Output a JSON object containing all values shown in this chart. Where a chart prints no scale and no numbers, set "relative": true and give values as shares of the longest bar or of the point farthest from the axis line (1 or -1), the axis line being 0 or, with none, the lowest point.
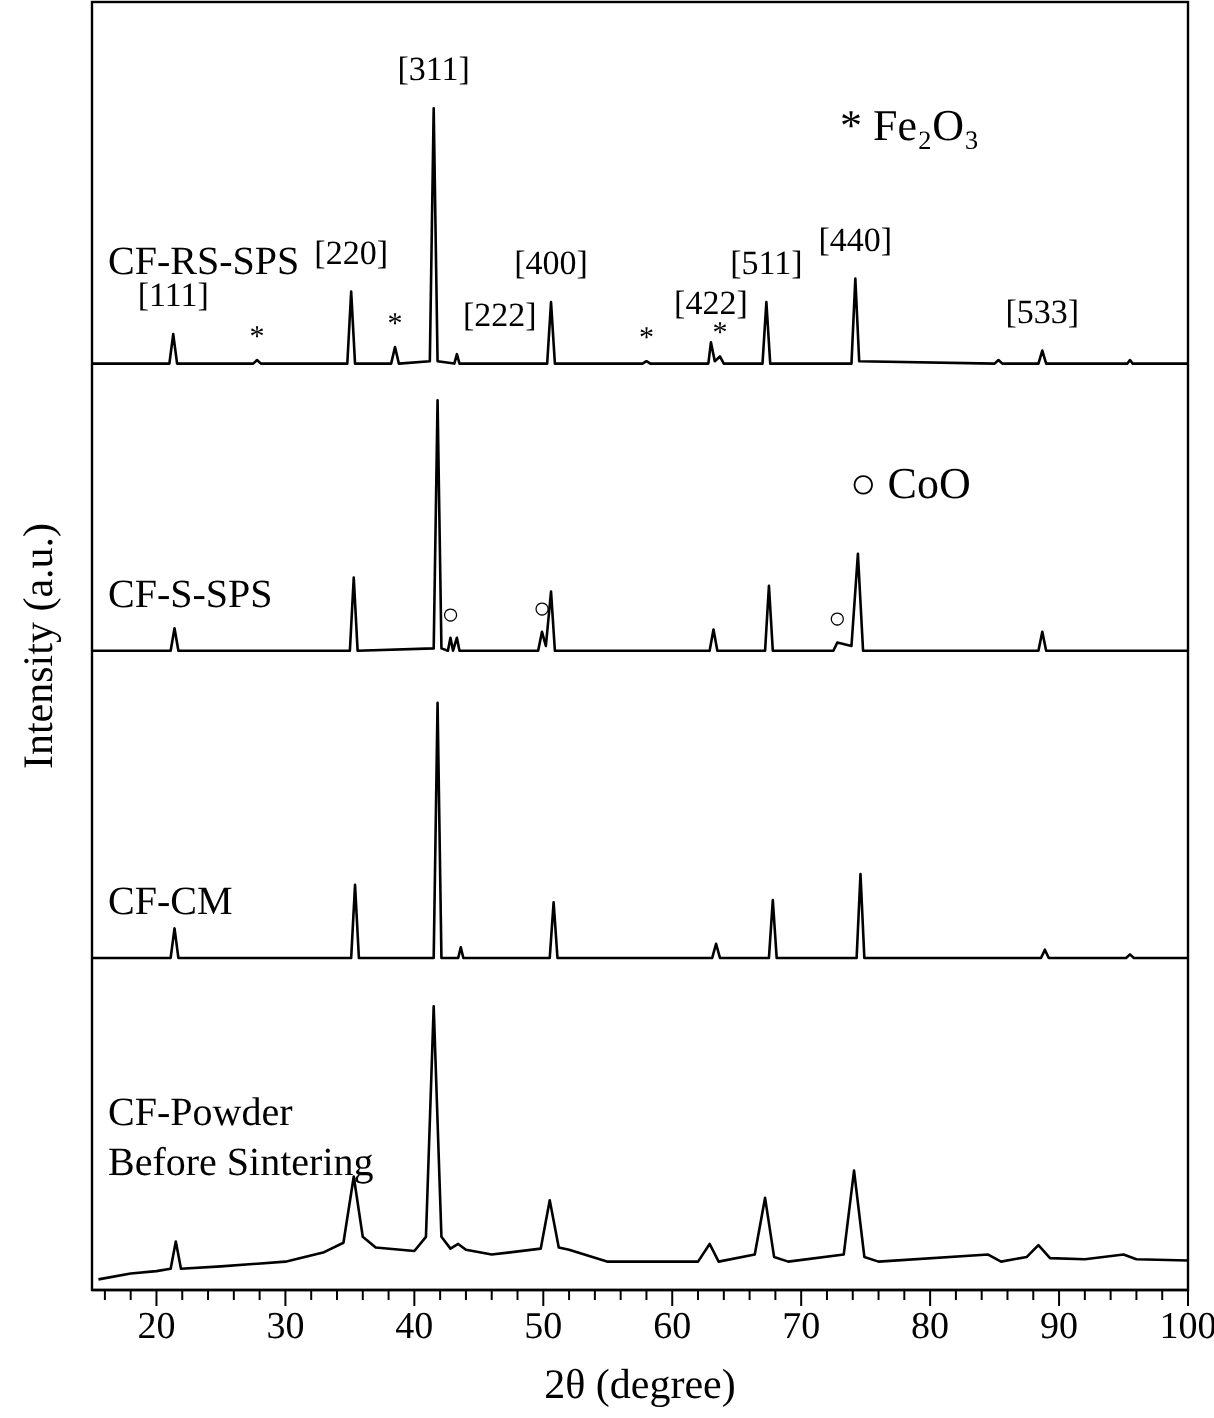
{
  "chart_data": {
    "type": "line",
    "relative": true,
    "xlabel": "2θ (degree)",
    "ylabel": "Intensity (a.u.)",
    "xlim": [
      15,
      100
    ],
    "xticks": [
      {
        "value": 16,
        "label": null
      },
      {
        "value": 18,
        "label": null
      },
      20,
      {
        "value": 22,
        "label": null
      },
      {
        "value": 24,
        "label": null
      },
      {
        "value": 26,
        "label": null
      },
      {
        "value": 28,
        "label": null
      },
      30,
      {
        "value": 32,
        "label": null
      },
      {
        "value": 34,
        "label": null
      },
      {
        "value": 36,
        "label": null
      },
      {
        "value": 38,
        "label": null
      },
      40,
      {
        "value": 42,
        "label": null
      },
      {
        "value": 44,
        "label": null
      },
      {
        "value": 46,
        "label": null
      },
      {
        "value": 48,
        "label": null
      },
      50,
      {
        "value": 52,
        "label": null
      },
      {
        "value": 54,
        "label": null
      },
      {
        "value": 56,
        "label": null
      },
      {
        "value": 58,
        "label": null
      },
      60,
      {
        "value": 62,
        "label": null
      },
      {
        "value": 64,
        "label": null
      },
      {
        "value": 66,
        "label": null
      },
      {
        "value": 68,
        "label": null
      },
      70,
      {
        "value": 72,
        "label": null
      },
      {
        "value": 74,
        "label": null
      },
      {
        "value": 76,
        "label": null
      },
      {
        "value": 78,
        "label": null
      },
      80,
      {
        "value": 82,
        "label": null
      },
      {
        "value": 84,
        "label": null
      },
      {
        "value": 86,
        "label": null
      },
      {
        "value": 88,
        "label": null
      },
      90,
      {
        "value": 92,
        "label": null
      },
      {
        "value": 94,
        "label": null
      },
      {
        "value": 96,
        "label": null
      },
      {
        "value": 98,
        "label": null
      },
      100
    ],
    "grid": false,
    "legend": false,
    "marker": "none",
    "line_style": "solid",
    "tick_labels": "x",
    "series": [
      {
        "name": "CF-RS-SPS",
        "color": "#000000",
        "x": [
          15,
          21,
          21.3,
          21.6,
          27.5,
          27.8,
          28.1,
          34.8,
          35.1,
          35.4,
          38.2,
          38.5,
          38.8,
          41.2,
          41.5,
          41.8,
          43.1,
          43.3,
          43.5,
          50.3,
          50.6,
          50.9,
          57.7,
          58,
          58.3,
          62.8,
          63,
          63.3,
          63.7,
          64,
          67,
          67.3,
          67.6,
          73.9,
          74.2,
          74.5,
          85,
          85.3,
          85.6,
          88.4,
          88.7,
          89,
          95.3,
          95.5,
          95.7,
          100
        ],
        "values": [
          0.784,
          0.784,
          0.809,
          0.784,
          0.784,
          0.787,
          0.784,
          0.784,
          0.845,
          0.784,
          0.784,
          0.798,
          0.784,
          0.786,
          1,
          0.786,
          0.784,
          0.792,
          0.784,
          0.784,
          0.836,
          0.784,
          0.784,
          0.786,
          0.784,
          0.784,
          0.802,
          0.786,
          0.79,
          0.784,
          0.784,
          0.836,
          0.784,
          0.784,
          0.856,
          0.786,
          0.784,
          0.787,
          0.784,
          0.784,
          0.795,
          0.784,
          0.784,
          0.787,
          0.784,
          0.784
        ]
      },
      {
        "name": "CF-S-SPS",
        "color": "#000000",
        "x": [
          15,
          21.1,
          21.4,
          21.7,
          35,
          35.3,
          35.6,
          41.5,
          41.8,
          42.1,
          42.6,
          42.8,
          43,
          43.3,
          43.5,
          49.6,
          49.9,
          50.2,
          50.6,
          50.9,
          62.9,
          63.2,
          63.5,
          67.2,
          67.5,
          67.8,
          72.5,
          72.8,
          73.9,
          74.4,
          74.8,
          88.4,
          88.7,
          89,
          100
        ],
        "values": [
          0.541,
          0.541,
          0.56,
          0.541,
          0.541,
          0.603,
          0.541,
          0.543,
          0.753,
          0.543,
          0.541,
          0.552,
          0.541,
          0.552,
          0.541,
          0.541,
          0.557,
          0.545,
          0.591,
          0.541,
          0.541,
          0.559,
          0.541,
          0.541,
          0.596,
          0.541,
          0.541,
          0.548,
          0.545,
          0.623,
          0.541,
          0.541,
          0.557,
          0.541,
          0.541
        ]
      },
      {
        "name": "CF-CM",
        "color": "#000000",
        "x": [
          15,
          21.1,
          21.4,
          21.7,
          35.1,
          35.4,
          35.7,
          41.5,
          41.8,
          42.1,
          43.4,
          43.6,
          43.8,
          50.5,
          50.8,
          51.1,
          63.1,
          63.4,
          63.7,
          67.5,
          67.8,
          68.1,
          74.3,
          74.6,
          74.9,
          88.6,
          88.9,
          89.2,
          95.2,
          95.5,
          95.8,
          100
        ],
        "values": [
          0.281,
          0.281,
          0.306,
          0.281,
          0.281,
          0.343,
          0.281,
          0.281,
          0.497,
          0.281,
          0.281,
          0.29,
          0.281,
          0.281,
          0.328,
          0.281,
          0.281,
          0.293,
          0.281,
          0.281,
          0.33,
          0.281,
          0.281,
          0.352,
          0.281,
          0.281,
          0.288,
          0.281,
          0.281,
          0.284,
          0.281,
          0.281
        ]
      },
      {
        "name": "CF-Powder\nBefore Sintering",
        "color": "#000000",
        "x": [
          15.5,
          18,
          20,
          21.1,
          21.5,
          21.9,
          25,
          30,
          33,
          34.5,
          35.3,
          36,
          37,
          40,
          40.9,
          41.5,
          42.1,
          42.8,
          43.4,
          44,
          46,
          49.8,
          50.5,
          51.2,
          52,
          55,
          62,
          62.9,
          63.6,
          66.4,
          67.2,
          67.9,
          69,
          73.3,
          74.1,
          74.9,
          76,
          84.5,
          85.5,
          87.5,
          88.4,
          89.3,
          92,
          95,
          96,
          100
        ],
        "values": [
          0.009,
          0.014,
          0.016,
          0.018,
          0.041,
          0.018,
          0.02,
          0.024,
          0.032,
          0.04,
          0.096,
          0.045,
          0.036,
          0.033,
          0.045,
          0.24,
          0.045,
          0.035,
          0.039,
          0.034,
          0.03,
          0.035,
          0.076,
          0.036,
          0.034,
          0.024,
          0.024,
          0.039,
          0.024,
          0.03,
          0.078,
          0.028,
          0.024,
          0.03,
          0.101,
          0.028,
          0.024,
          0.03,
          0.024,
          0.028,
          0.038,
          0.027,
          0.026,
          0.03,
          0.026,
          0.025
        ]
      }
    ],
    "annotations": [
      "* Fe₂O₃",
      "○ CoO",
      {
        "text": "[111]",
        "x": 21.3,
        "y": 0.809
      },
      {
        "text": "[220]",
        "x": 35.1,
        "y": 0.845
      },
      {
        "text": "[311]",
        "x": 41.5,
        "y": 1
      },
      {
        "text": "[222]",
        "x": 43.3,
        "y": 0.792
      },
      {
        "text": "[400]",
        "x": 50.6,
        "y": 0.836
      },
      {
        "text": "[422]",
        "x": 63,
        "y": 0.802
      },
      {
        "text": "[511]",
        "x": 67.3,
        "y": 0.836
      },
      {
        "text": "[440]",
        "x": 74.2,
        "y": 0.856
      },
      {
        "text": "[533]",
        "x": 88.7,
        "y": 0.795
      },
      {
        "text": "*",
        "x": 27.8,
        "y": 0.787
      },
      {
        "text": "*",
        "x": 38.5,
        "y": 0.798
      },
      {
        "text": "*",
        "x": 58,
        "y": 0.786
      },
      {
        "text": "*",
        "x": 63.7,
        "y": 0.79
      },
      {
        "text": "○",
        "x": 42.8,
        "y": 0.552
      },
      {
        "text": "○",
        "x": 49.9,
        "y": 0.557
      },
      {
        "text": "○",
        "x": 72.8,
        "y": 0.548
      }
    ]
  }
}
